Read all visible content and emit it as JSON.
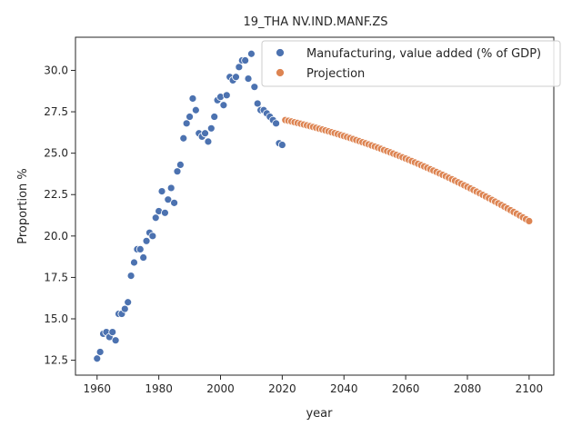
{
  "chart_data": {
    "type": "scatter",
    "title": "19_THA NV.IND.MANF.ZS",
    "xlabel": "year",
    "ylabel": "Proportion %",
    "xlim": [
      1953,
      2108
    ],
    "ylim": [
      11.6,
      32.0
    ],
    "xticks": [
      1960,
      1980,
      2000,
      2020,
      2040,
      2060,
      2080,
      2100
    ],
    "yticks": [
      12.5,
      15.0,
      17.5,
      20.0,
      22.5,
      25.0,
      27.5,
      30.0
    ],
    "xtick_labels": [
      "1960",
      "1980",
      "2000",
      "2020",
      "2040",
      "2060",
      "2080",
      "2100"
    ],
    "ytick_labels": [
      "12.5",
      "15.0",
      "17.5",
      "20.0",
      "22.5",
      "25.0",
      "27.5",
      "30.0"
    ],
    "legend_position": "top-right",
    "series": [
      {
        "name": "Manufacturing, value added (% of GDP)",
        "color": "#4c72b0",
        "x": [
          1960,
          1961,
          1962,
          1963,
          1964,
          1965,
          1966,
          1967,
          1968,
          1969,
          1970,
          1971,
          1972,
          1973,
          1974,
          1975,
          1976,
          1977,
          1978,
          1979,
          1980,
          1981,
          1982,
          1983,
          1984,
          1985,
          1986,
          1987,
          1988,
          1989,
          1990,
          1991,
          1992,
          1993,
          1994,
          1995,
          1996,
          1997,
          1998,
          1999,
          2000,
          2001,
          2002,
          2003,
          2004,
          2005,
          2006,
          2007,
          2008,
          2009,
          2010,
          2011,
          2012,
          2013,
          2014,
          2015,
          2016,
          2017,
          2018,
          2019,
          2020
        ],
        "y": [
          12.6,
          13.0,
          14.1,
          14.2,
          13.9,
          14.2,
          13.7,
          15.3,
          15.3,
          15.6,
          16.0,
          17.6,
          18.4,
          19.2,
          19.2,
          18.7,
          19.7,
          20.2,
          20.0,
          21.1,
          21.5,
          22.7,
          21.4,
          22.2,
          22.9,
          22.0,
          23.9,
          24.3,
          25.9,
          26.8,
          27.2,
          28.3,
          27.6,
          26.2,
          26.0,
          26.2,
          25.7,
          26.5,
          27.2,
          28.2,
          28.4,
          27.9,
          28.5,
          29.6,
          29.4,
          29.6,
          30.2,
          30.6,
          30.6,
          29.5,
          31.0,
          29.0,
          28.0,
          27.6,
          27.6,
          27.4,
          27.2,
          27.0,
          26.8,
          25.6,
          25.5
        ]
      },
      {
        "name": "Projection",
        "color": "#dd8452",
        "x_start": 2021,
        "x_end": 2100,
        "y_start": 27.0,
        "y_end": 20.9
      }
    ]
  }
}
